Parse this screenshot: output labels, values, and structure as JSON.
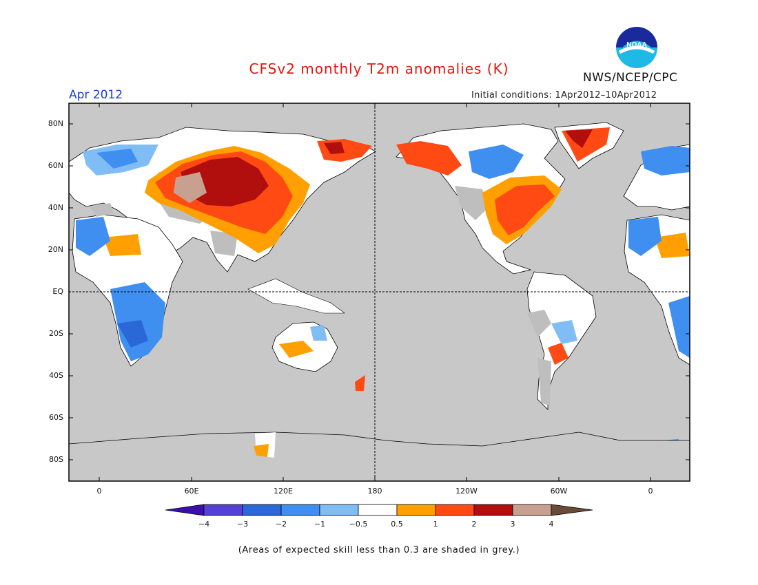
{
  "title": "CFSv2 monthly T2m anomalies (K)",
  "month": "Apr 2012",
  "initial_conditions": "Initial conditions: 1Apr2012–10Apr2012",
  "agency": "NWS/NCEP/CPC",
  "logo_text": "NOAA",
  "colors": {
    "title": "#e8140c",
    "month": "#1c3cd6",
    "ocean_grey": "#c8c8c8",
    "low_skill_grey": "#bebebe",
    "coastline": "#000000"
  },
  "map": {
    "lat_labels": [
      "80N",
      "60N",
      "40N",
      "20N",
      "EQ",
      "20S",
      "40S",
      "60S",
      "80S"
    ],
    "lon_labels": [
      "0",
      "60E",
      "120E",
      "180",
      "120W",
      "60W",
      "0"
    ]
  },
  "colorbar": {
    "ticks": [
      "−4",
      "−3",
      "−2",
      "−1",
      "−0.5",
      "0.5",
      "1",
      "2",
      "3",
      "4"
    ],
    "colors": [
      "#3a0fae",
      "#5342d4",
      "#2a68d8",
      "#3f8ff0",
      "#80bdf5",
      "#ffffff",
      "#ffa000",
      "#ff4a14",
      "#b10e0e",
      "#c8a090",
      "#6b4a3a"
    ]
  },
  "note": "(Areas of expected skill less than 0.3 are shaded in grey.)"
}
